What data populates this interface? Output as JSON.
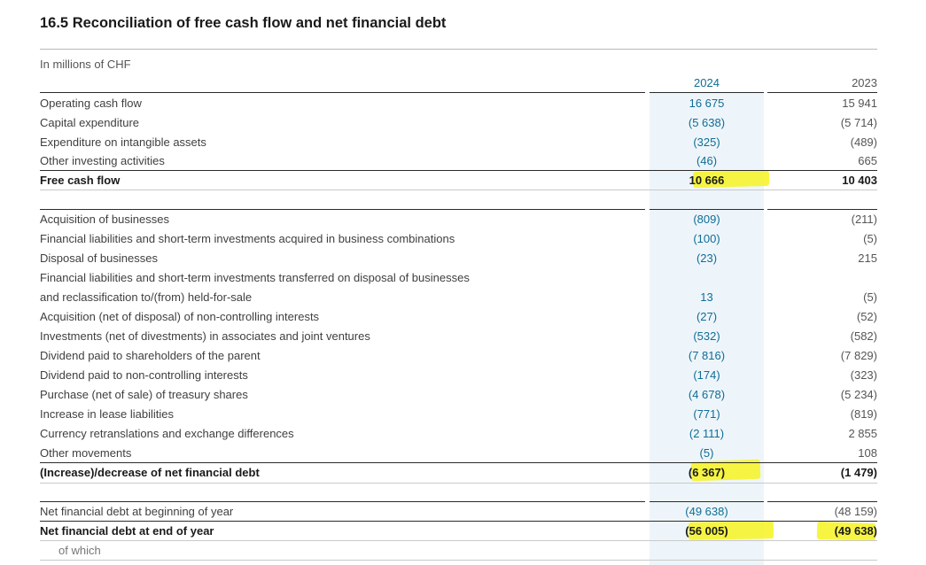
{
  "title": "16.5 Reconciliation of free cash flow and net financial debt",
  "units": "In millions of CHF",
  "years": [
    "2024",
    "2023"
  ],
  "rows": [
    {
      "label": "Operating cash flow",
      "v2024": "16 675",
      "v2023": "15 941"
    },
    {
      "label": "Capital expenditure",
      "v2024": "(5 638)",
      "v2023": "(5 714)"
    },
    {
      "label": "Expenditure on intangible assets",
      "v2024": "(325)",
      "v2023": "(489)"
    },
    {
      "label": "Other investing activities",
      "v2024": "(46)",
      "v2023": "665"
    },
    {
      "label": "Free cash flow",
      "v2024": "10 666",
      "v2023": "10 403"
    },
    {
      "label": "Acquisition of businesses",
      "v2024": "(809)",
      "v2023": "(211)"
    },
    {
      "label": "Financial liabilities and short-term investments acquired in business combinations",
      "v2024": "(100)",
      "v2023": "(5)"
    },
    {
      "label": "Disposal of businesses",
      "v2024": "(23)",
      "v2023": "215"
    },
    {
      "label": "Financial liabilities and short-term investments transferred on disposal of businesses",
      "v2024": "",
      "v2023": ""
    },
    {
      "label": "and reclassification to/(from) held-for-sale",
      "v2024": "13",
      "v2023": "(5)"
    },
    {
      "label": "Acquisition (net of disposal) of non-controlling interests",
      "v2024": "(27)",
      "v2023": "(52)"
    },
    {
      "label": "Investments (net of divestments) in associates and joint ventures",
      "v2024": "(532)",
      "v2023": "(582)"
    },
    {
      "label": "Dividend paid to shareholders of the parent",
      "v2024": "(7 816)",
      "v2023": "(7 829)"
    },
    {
      "label": "Dividend paid to non-controlling interests",
      "v2024": "(174)",
      "v2023": "(323)"
    },
    {
      "label": "Purchase (net of sale) of treasury shares",
      "v2024": "(4 678)",
      "v2023": "(5 234)"
    },
    {
      "label": "Increase in lease liabilities",
      "v2024": "(771)",
      "v2023": "(819)"
    },
    {
      "label": "Currency retranslations and exchange differences",
      "v2024": "(2 111)",
      "v2023": "2 855"
    },
    {
      "label": "Other movements",
      "v2024": "(5)",
      "v2023": "108"
    },
    {
      "label": "(Increase)/decrease of net financial debt",
      "v2024": "(6 367)",
      "v2023": "(1 479)"
    },
    {
      "label": "Net financial debt at beginning of year",
      "v2024": "(49 638)",
      "v2023": "(48 159)"
    },
    {
      "label": "Net financial debt at end of year",
      "v2024": "(56 005)",
      "v2023": "(49 638)"
    },
    {
      "label": "of which",
      "v2024": "",
      "v2023": ""
    }
  ],
  "colors": {
    "value_2024": "#0f6d96",
    "highlight": "#f7f321"
  }
}
